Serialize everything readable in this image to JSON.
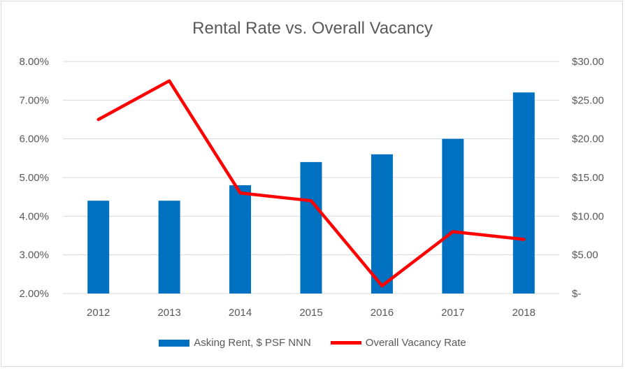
{
  "colors": {
    "bar": "#0070c0",
    "line": "#ff0000",
    "grid": "#d9d9d9",
    "text": "#595959"
  },
  "chart_data": {
    "type": "bar",
    "title": "Rental Rate vs. Overall Vacancy",
    "categories": [
      "2012",
      "2013",
      "2014",
      "2015",
      "2016",
      "2017",
      "2018"
    ],
    "series": [
      {
        "name": "Asking Rent, $ PSF NNN",
        "type": "bar",
        "axis": "right",
        "values": [
          12,
          12,
          14,
          17,
          18,
          20,
          26
        ]
      },
      {
        "name": "Overall Vacancy Rate",
        "type": "line",
        "axis": "left",
        "values": [
          6.5,
          7.5,
          4.6,
          4.4,
          2.2,
          3.6,
          3.4
        ]
      }
    ],
    "y_left": {
      "ylim": [
        2,
        8
      ],
      "ticks": [
        "2.00%",
        "3.00%",
        "4.00%",
        "5.00%",
        "6.00%",
        "7.00%",
        "8.00%"
      ]
    },
    "y_right": {
      "ylim": [
        0,
        30
      ],
      "ticks": [
        "$-",
        "$5.00",
        "$10.00",
        "$15.00",
        "$20.00",
        "$25.00",
        "$30.00"
      ]
    },
    "grid": true,
    "legend_position": "bottom"
  }
}
